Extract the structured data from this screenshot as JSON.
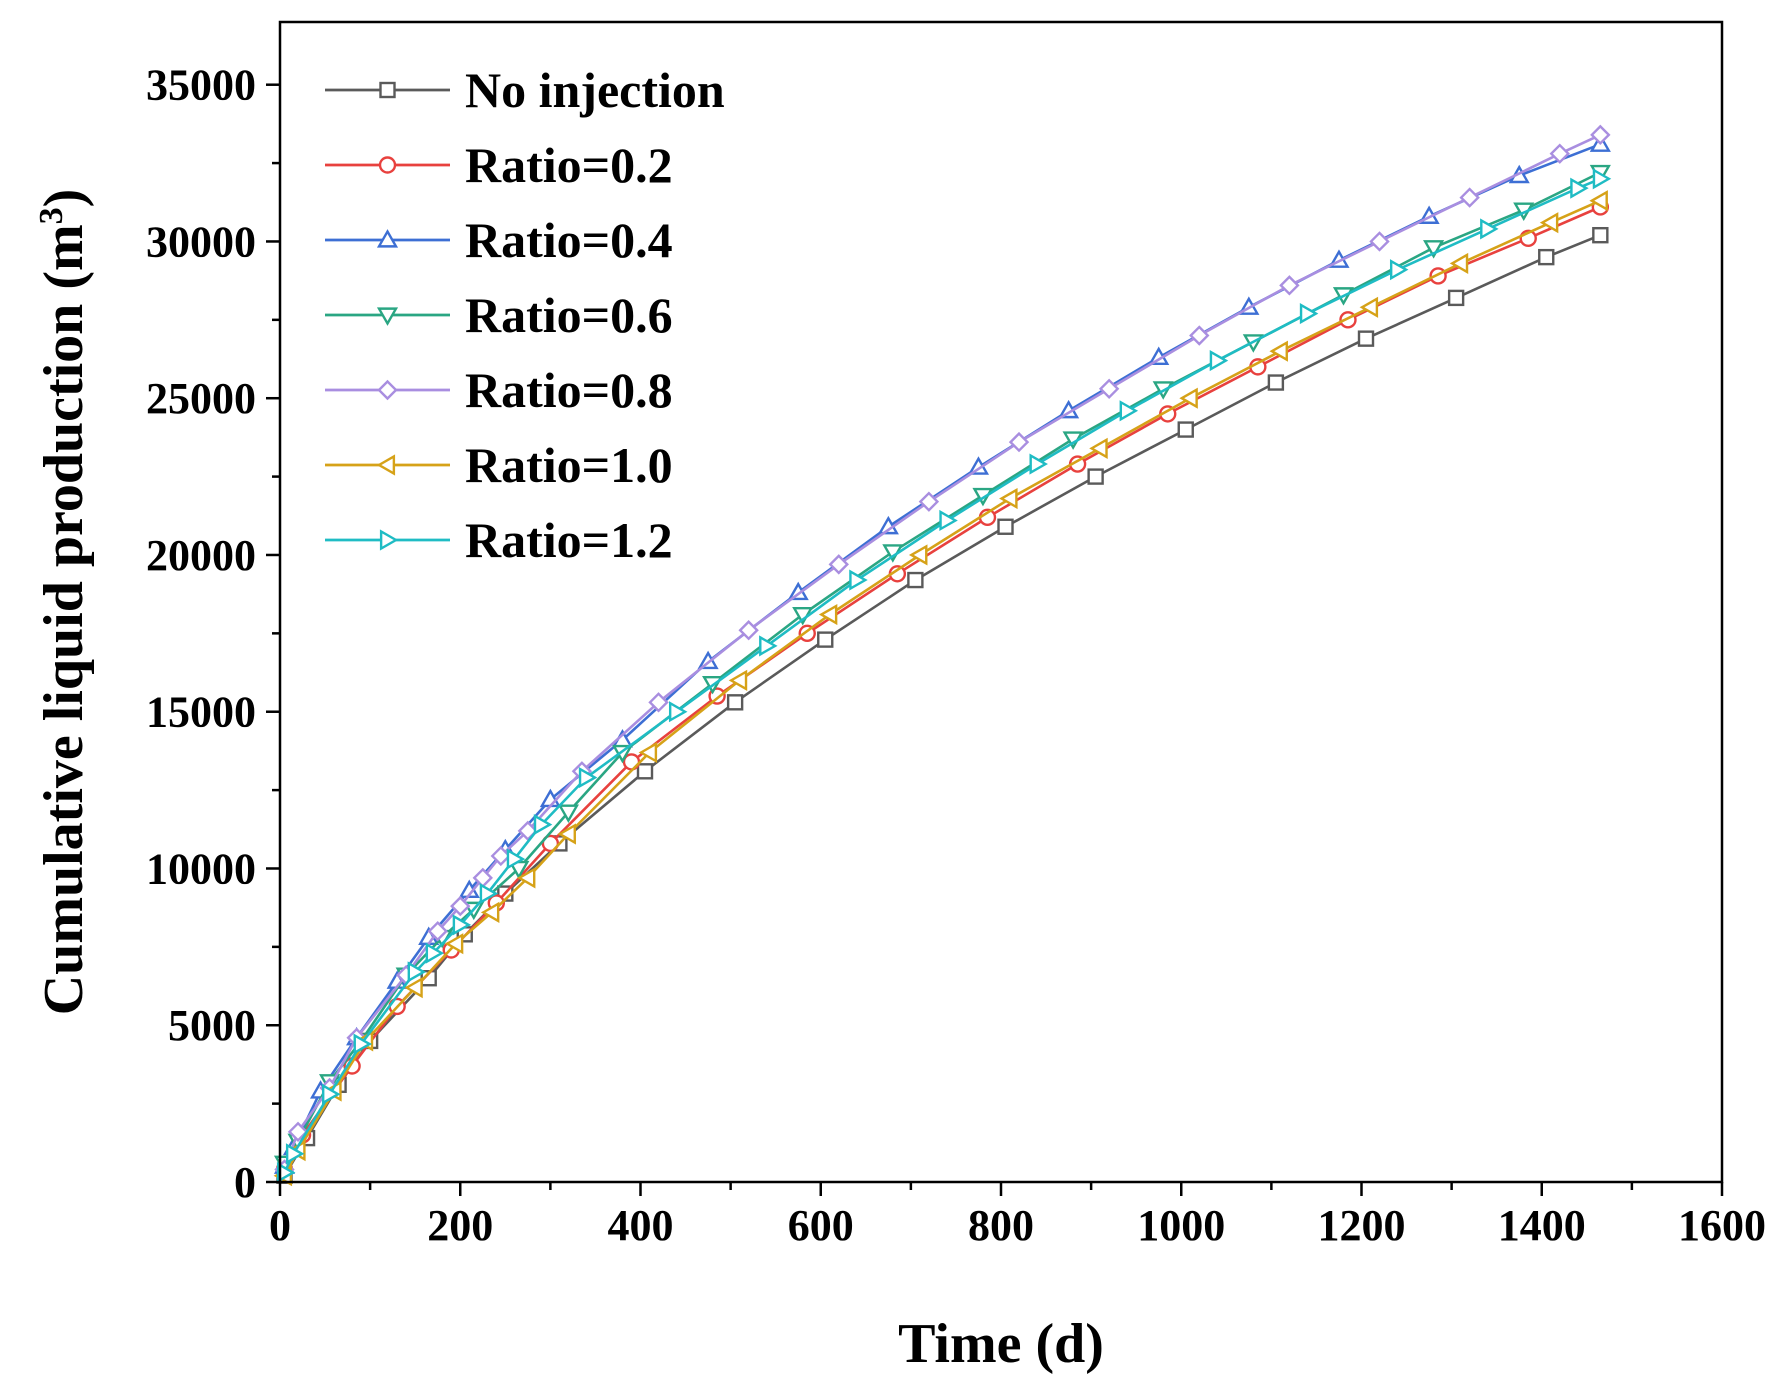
{
  "chart_data": {
    "type": "line",
    "title": "",
    "xlabel": "Time (d)",
    "ylabel_main": "Cumulative liquid production (m",
    "ylabel_sup": "3",
    "ylabel_close": ")",
    "xlim": [
      0,
      1600
    ],
    "ylim": [
      0,
      37000
    ],
    "xticks": [
      0,
      200,
      400,
      600,
      800,
      1000,
      1200,
      1400,
      1600
    ],
    "yticks": [
      0,
      5000,
      10000,
      15000,
      20000,
      25000,
      30000,
      35000
    ],
    "grid": false,
    "legend_position": "top-left",
    "series": [
      {
        "name": "No injection",
        "color": "#5a5a5a",
        "marker": "square",
        "x": [
          5,
          30,
          65,
          100,
          165,
          205,
          250,
          310,
          405,
          505,
          605,
          705,
          805,
          905,
          1005,
          1105,
          1205,
          1305,
          1405,
          1465
        ],
        "y": [
          200,
          1400,
          3100,
          4500,
          6500,
          7900,
          9200,
          10800,
          13100,
          15300,
          17300,
          19200,
          20900,
          22500,
          24000,
          25500,
          26900,
          28200,
          29500,
          30200
        ]
      },
      {
        "name": "Ratio=0.2",
        "color": "#e8413e",
        "marker": "circle",
        "x": [
          5,
          25,
          80,
          130,
          190,
          240,
          300,
          390,
          485,
          585,
          685,
          785,
          885,
          985,
          1085,
          1185,
          1285,
          1385,
          1465
        ],
        "y": [
          400,
          1500,
          3700,
          5600,
          7400,
          8900,
          10800,
          13400,
          15500,
          17500,
          19400,
          21200,
          22900,
          24500,
          26000,
          27500,
          28900,
          30100,
          31100
        ]
      },
      {
        "name": "Ratio=0.4",
        "color": "#3d6fd4",
        "marker": "triangle-up",
        "x": [
          5,
          15,
          45,
          85,
          130,
          165,
          210,
          250,
          300,
          380,
          475,
          575,
          675,
          775,
          875,
          975,
          1075,
          1175,
          1275,
          1375,
          1465
        ],
        "y": [
          500,
          1100,
          2900,
          4600,
          6400,
          7800,
          9300,
          10600,
          12200,
          14100,
          16600,
          18800,
          20900,
          22800,
          24600,
          26300,
          27900,
          29400,
          30800,
          32100,
          33100
        ]
      },
      {
        "name": "Ratio=0.6",
        "color": "#2aa683",
        "marker": "triangle-down",
        "x": [
          5,
          20,
          55,
          90,
          140,
          180,
          215,
          265,
          320,
          380,
          480,
          580,
          680,
          780,
          880,
          980,
          1080,
          1180,
          1280,
          1380,
          1465
        ],
        "y": [
          600,
          1300,
          3200,
          4500,
          6600,
          7800,
          8700,
          10000,
          11800,
          13700,
          15900,
          18100,
          20100,
          21900,
          23700,
          25300,
          26800,
          28300,
          29800,
          31000,
          32200
        ]
      },
      {
        "name": "Ratio=0.8",
        "color": "#a98ee0",
        "marker": "diamond",
        "x": [
          5,
          20,
          55,
          85,
          140,
          175,
          200,
          225,
          245,
          275,
          335,
          420,
          520,
          620,
          720,
          820,
          920,
          1020,
          1120,
          1220,
          1320,
          1420,
          1465
        ],
        "y": [
          400,
          1600,
          3000,
          4600,
          6600,
          8000,
          8800,
          9700,
          10400,
          11200,
          13100,
          15300,
          17600,
          19700,
          21700,
          23600,
          25300,
          27000,
          28600,
          30000,
          31400,
          32800,
          33400
        ]
      },
      {
        "name": "Ratio=1.0",
        "color": "#d6a218",
        "marker": "triangle-left",
        "x": [
          5,
          20,
          60,
          95,
          150,
          195,
          235,
          275,
          320,
          410,
          510,
          610,
          710,
          810,
          910,
          1010,
          1110,
          1210,
          1310,
          1410,
          1465
        ],
        "y": [
          200,
          1000,
          2900,
          4500,
          6200,
          7600,
          8600,
          9700,
          11100,
          13700,
          16000,
          18100,
          20000,
          21800,
          23400,
          25000,
          26500,
          27900,
          29300,
          30600,
          31300
        ]
      },
      {
        "name": "Ratio=1.2",
        "color": "#1fbcc4",
        "marker": "triangle-right",
        "x": [
          5,
          15,
          55,
          90,
          150,
          170,
          200,
          230,
          260,
          290,
          340,
          440,
          540,
          640,
          740,
          840,
          940,
          1040,
          1140,
          1240,
          1340,
          1440,
          1465
        ],
        "y": [
          300,
          900,
          2800,
          4400,
          6700,
          7300,
          8200,
          9200,
          10300,
          11400,
          12900,
          15000,
          17100,
          19200,
          21100,
          22900,
          24600,
          26200,
          27700,
          29100,
          30400,
          31700,
          32000
        ]
      }
    ]
  }
}
